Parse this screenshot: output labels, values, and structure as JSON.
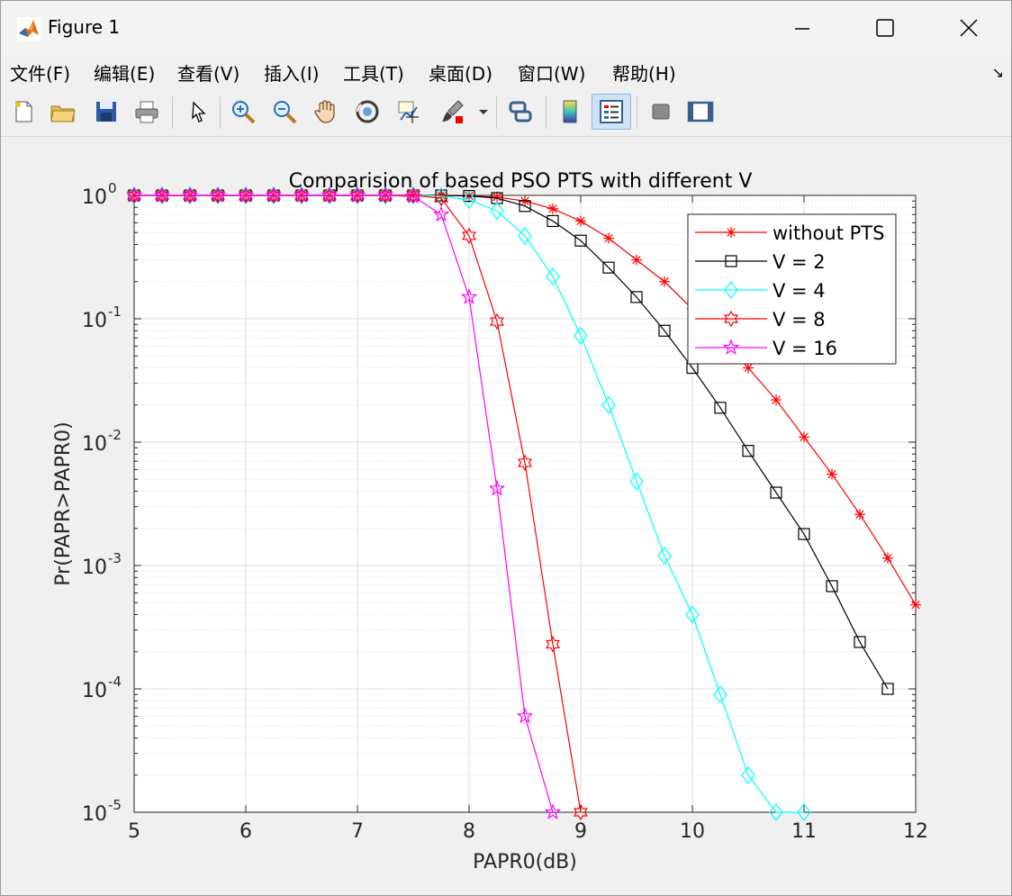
{
  "window": {
    "title": "Figure 1"
  },
  "menu": [
    "文件(F)",
    "编辑(E)",
    "查看(V)",
    "插入(I)",
    "工具(T)",
    "桌面(D)",
    "窗口(W)",
    "帮助(H)"
  ],
  "toolbar": {
    "icons": [
      "new-figure-icon",
      "open-file-icon",
      "save-icon",
      "print-icon",
      "pointer-icon",
      "zoom-in-icon",
      "zoom-out-icon",
      "pan-hand-icon",
      "rotate-3d-icon",
      "data-cursor-icon",
      "brush-icon",
      "link-plot-icon",
      "colorbar-icon",
      "legend-icon",
      "hide-plot-tools-icon",
      "show-plot-tools-icon"
    ]
  },
  "chart_data": {
    "type": "line",
    "title": "Comparision of based PSO PTS with different V",
    "xlabel": "PAPR0(dB)",
    "ylabel": "Pr(PAPR>PAPR0)",
    "xlim": [
      5,
      12
    ],
    "ylim": [
      1e-05,
      1
    ],
    "yscale": "log",
    "grid": true,
    "legend_position": "top-right",
    "x_ticks": [
      "5",
      "6",
      "7",
      "8",
      "9",
      "10",
      "11",
      "12"
    ],
    "y_ticks": [
      {
        "base": "10",
        "exp": "0",
        "v": 1
      },
      {
        "base": "10",
        "exp": "-1",
        "v": 0.1
      },
      {
        "base": "10",
        "exp": "-2",
        "v": 0.01
      },
      {
        "base": "10",
        "exp": "-3",
        "v": 0.001
      },
      {
        "base": "10",
        "exp": "-4",
        "v": 0.0001
      },
      {
        "base": "10",
        "exp": "-5",
        "v": 1e-05
      }
    ],
    "series": [
      {
        "name": "without PTS",
        "color": "#ff0000",
        "marker": "asterisk",
        "x": [
          5,
          5.25,
          5.5,
          5.75,
          6,
          6.25,
          6.5,
          6.75,
          7,
          7.25,
          7.5,
          7.75,
          8,
          8.25,
          8.5,
          8.75,
          9,
          9.25,
          9.5,
          9.75,
          10,
          10.25,
          10.5,
          10.75,
          11,
          11.25,
          11.5,
          11.75,
          12
        ],
        "y": [
          1,
          1,
          1,
          1,
          1,
          1,
          1,
          1,
          1,
          1,
          1,
          1,
          0.99,
          0.97,
          0.9,
          0.78,
          0.62,
          0.45,
          0.3,
          0.2,
          0.12,
          0.07,
          0.04,
          0.022,
          0.011,
          0.0055,
          0.0026,
          0.00115,
          0.00048
        ]
      },
      {
        "name": "V = 2",
        "color": "#000000",
        "marker": "square",
        "x": [
          5,
          5.25,
          5.5,
          5.75,
          6,
          6.25,
          6.5,
          6.75,
          7,
          7.25,
          7.5,
          7.75,
          8,
          8.25,
          8.5,
          8.75,
          9,
          9.25,
          9.5,
          9.75,
          10,
          10.25,
          10.5,
          10.75,
          11,
          11.25,
          11.5,
          11.75
        ],
        "y": [
          1,
          1,
          1,
          1,
          1,
          1,
          1,
          1,
          1,
          1,
          1,
          1,
          0.99,
          0.95,
          0.82,
          0.62,
          0.43,
          0.26,
          0.15,
          0.08,
          0.04,
          0.019,
          0.0085,
          0.0039,
          0.0018,
          0.00068,
          0.00024,
          0.0001
        ]
      },
      {
        "name": "V = 4",
        "color": "#00ffff",
        "marker": "diamond",
        "x": [
          5,
          5.25,
          5.5,
          5.75,
          6,
          6.25,
          6.5,
          6.75,
          7,
          7.25,
          7.5,
          7.75,
          8,
          8.25,
          8.5,
          8.75,
          9,
          9.25,
          9.5,
          9.75,
          10,
          10.25,
          10.5,
          10.75,
          11
        ],
        "y": [
          1,
          1,
          1,
          1,
          1,
          1,
          1,
          1,
          1,
          1,
          1,
          0.99,
          0.92,
          0.75,
          0.47,
          0.22,
          0.073,
          0.02,
          0.0048,
          0.0012,
          0.0004,
          9e-05,
          2e-05,
          1e-05,
          1e-05
        ]
      },
      {
        "name": "V = 8",
        "color": "#ff0000",
        "marker": "hexagram",
        "x": [
          5,
          5.25,
          5.5,
          5.75,
          6,
          6.25,
          6.5,
          6.75,
          7,
          7.25,
          7.5,
          7.75,
          8,
          8.25,
          8.5,
          8.75,
          9
        ],
        "y": [
          1,
          1,
          1,
          1,
          1,
          1,
          1,
          1,
          1,
          1,
          1,
          0.95,
          0.47,
          0.095,
          0.0068,
          0.00023,
          1e-05
        ]
      },
      {
        "name": "V = 16",
        "color": "#ff00ff",
        "marker": "pentagram",
        "x": [
          5,
          5.25,
          5.5,
          5.75,
          6,
          6.25,
          6.5,
          6.75,
          7,
          7.25,
          7.5,
          7.75,
          8,
          8.25,
          8.5,
          8.75
        ],
        "y": [
          1,
          1,
          1,
          1,
          1,
          1,
          1,
          1,
          1,
          1,
          0.98,
          0.7,
          0.15,
          0.0042,
          6e-05,
          1e-05
        ]
      }
    ]
  }
}
